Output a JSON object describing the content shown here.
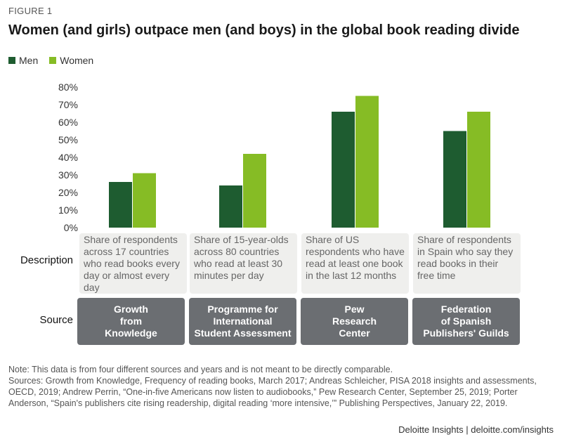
{
  "figure_label": "FIGURE 1",
  "chart_data": {
    "type": "bar",
    "title": "Women (and girls) outpace men (and boys) in the global book reading divide",
    "categories": [
      "Growth from Knowledge",
      "Programme for International Student Assessment",
      "Pew Research Center",
      "Federation of Spanish Publishers' Guilds"
    ],
    "series": [
      {
        "name": "Men",
        "color": "#1e5c30",
        "values": [
          26,
          24,
          66,
          55
        ]
      },
      {
        "name": "Women",
        "color": "#86bc25",
        "values": [
          31,
          42,
          75,
          66
        ]
      }
    ],
    "ylim": [
      0,
      80
    ],
    "yticks": [
      0,
      10,
      20,
      30,
      40,
      50,
      60,
      70,
      80
    ],
    "ytick_labels": [
      "0%",
      "10%",
      "20%",
      "30%",
      "40%",
      "50%",
      "60%",
      "70%",
      "80%"
    ],
    "xlabel": "",
    "ylabel": "",
    "legend_position": "top-left"
  },
  "rows": {
    "description_label": "Description",
    "source_label": "Source"
  },
  "descriptions": [
    "Share of respondents across 17 countries who read books every day or almost every day",
    "Share of 15-year-olds across 80 countries who read at least 30 minutes per day",
    "Share of US respondents who have read at least one book in the last 12 months",
    "Share of respondents in Spain who say they read books in their free time"
  ],
  "sources": [
    "Growth\nfrom\nKnowledge",
    "Programme for\nInternational\nStudent Assessment",
    "Pew\nResearch\nCenter",
    "Federation\nof Spanish\nPublishers' Guilds"
  ],
  "notes": {
    "note": "Note: This data is from four different sources and years and is not meant to be directly comparable.",
    "sources": "Sources: Growth from Knowledge, Frequency of reading books, March 2017; Andreas Schleicher, PISA 2018 insights and assessments, OECD, 2019; Andrew Perrin, “One-in-five Americans now listen to audiobooks,” Pew Research Center, September 25, 2019; Porter Anderson, “Spain's publishers cite rising readership, digital reading ‘more intensive,’” Publishing Perspectives, January 22, 2019."
  },
  "footer": "Deloitte Insights | deloitte.com/insights"
}
